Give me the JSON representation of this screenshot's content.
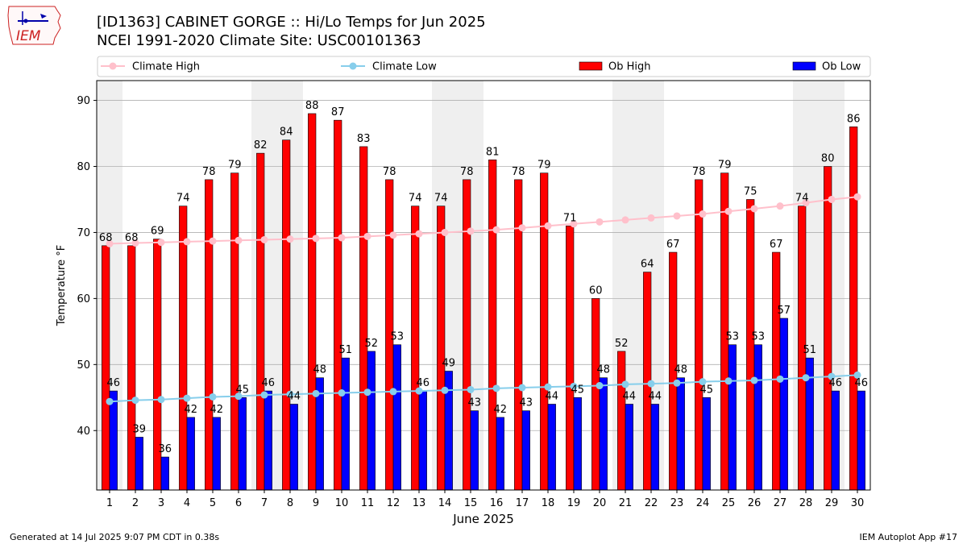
{
  "header": {
    "title_line1": "[ID1363] CABINET GORGE :: Hi/Lo Temps for Jun 2025",
    "title_line2": "NCEI 1991-2020 Climate Site: USC00101363",
    "logo_text": "IEM"
  },
  "footer": {
    "generated": "Generated at 14 Jul 2025 9:07 PM CDT in 0.38s",
    "app": "IEM Autoplot App #17"
  },
  "colors": {
    "ob_high": "#ff0000",
    "ob_low": "#0000ff",
    "climate_high": "#ffc0cb",
    "climate_low": "#87ceeb",
    "weekend_shade": "#efefef"
  },
  "chart_data": {
    "type": "bar",
    "xlabel": "June 2025",
    "ylabel": "Temperature °F",
    "ylim": [
      31,
      93
    ],
    "yticks": [
      40,
      50,
      60,
      70,
      80,
      90
    ],
    "grid": true,
    "legend_position": "top",
    "categories": [
      "1",
      "2",
      "3",
      "4",
      "5",
      "6",
      "7",
      "8",
      "9",
      "10",
      "11",
      "12",
      "13",
      "14",
      "15",
      "16",
      "17",
      "18",
      "19",
      "20",
      "21",
      "22",
      "23",
      "24",
      "25",
      "26",
      "27",
      "28",
      "29",
      "30"
    ],
    "weekend_days": [
      1,
      7,
      8,
      14,
      15,
      21,
      22,
      28,
      29
    ],
    "series": [
      {
        "name": "Ob High",
        "kind": "bar",
        "values": [
          68,
          68,
          69,
          74,
          78,
          79,
          82,
          84,
          88,
          87,
          83,
          78,
          74,
          74,
          78,
          81,
          78,
          79,
          71,
          60,
          52,
          64,
          67,
          78,
          79,
          75,
          67,
          74,
          80,
          86
        ]
      },
      {
        "name": "Ob Low",
        "kind": "bar",
        "values": [
          46,
          39,
          36,
          42,
          42,
          45,
          46,
          44,
          48,
          51,
          52,
          53,
          46,
          49,
          43,
          42,
          43,
          44,
          45,
          48,
          44,
          44,
          48,
          45,
          53,
          53,
          57,
          51,
          46,
          46
        ]
      },
      {
        "name": "Climate High",
        "kind": "line",
        "values": [
          68.3,
          68.4,
          68.5,
          68.6,
          68.7,
          68.8,
          68.9,
          69.0,
          69.1,
          69.2,
          69.4,
          69.6,
          69.8,
          70.0,
          70.2,
          70.4,
          70.7,
          71.0,
          71.3,
          71.6,
          71.9,
          72.2,
          72.5,
          72.8,
          73.2,
          73.6,
          74.0,
          74.5,
          75.0,
          75.4
        ]
      },
      {
        "name": "Climate Low",
        "kind": "line",
        "values": [
          44.4,
          44.6,
          44.7,
          44.9,
          45.1,
          45.2,
          45.4,
          45.5,
          45.6,
          45.7,
          45.8,
          45.9,
          46.0,
          46.1,
          46.2,
          46.4,
          46.5,
          46.6,
          46.7,
          46.8,
          47.0,
          47.1,
          47.2,
          47.4,
          47.5,
          47.6,
          47.8,
          48.0,
          48.2,
          48.4
        ]
      }
    ]
  }
}
